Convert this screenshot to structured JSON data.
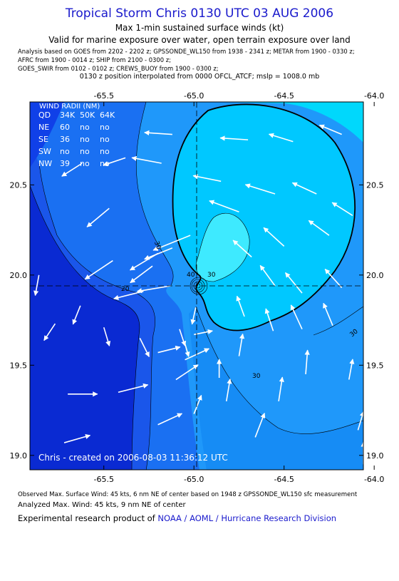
{
  "header": {
    "title": "Tropical Storm Chris 0130 UTC 03 AUG 2006",
    "subtitle": "Max 1-min sustained surface winds (kt)",
    "valid_note": "Valid for marine exposure over water, open terrain exposure over land",
    "analysis_line1": "Analysis based on  GOES from 2202 - 2202 z;  GPSSONDE_WL150 from 1938 - 2341 z;  METAR from 1900 - 0330 z;",
    "analysis_line2": "AFRC from 1900 - 0014 z;  SHIP from 2100 - 0300 z;",
    "analysis_line3": "GOES_SWIR from 0102 - 0102 z;  CREWS_BUOY from 1900 - 0300 z;",
    "interpolation_note": "0130 z position interpolated from 0000 OFCL_ATCF; mslp = 1008.0 mb"
  },
  "footer": {
    "observed_max": "Observed Max. Surface Wind: 45 kts, 6 nm NE of center based on 1948 z GPSSONDE_WL150 sfc measurement",
    "analyzed_max": "Analyzed Max. Wind: 45 kts, 9 nm NE of center",
    "product_prefix": "Experimental research product of ",
    "product_org": "NOAA / AOML / Hurricane Research Division"
  },
  "chart_data": {
    "type": "contour",
    "x_ticks": [
      "-65.5",
      "-65.0",
      "-64.5",
      "-64.0"
    ],
    "y_ticks": [
      "19.0",
      "19.5",
      "20.0",
      "20.5"
    ],
    "xlim": [
      -65.91,
      -64.06
    ],
    "ylim": [
      18.92,
      20.96
    ],
    "center": {
      "lon": -64.92,
      "lat": 19.91
    },
    "contour_labels": [
      "20",
      "30",
      "30",
      "30",
      "40",
      "30"
    ],
    "contour_levels_kt": [
      10,
      15,
      20,
      25,
      30,
      35,
      40,
      45
    ],
    "fill_colors": [
      "#0a2ad2",
      "#1040e8",
      "#1a70f2",
      "#1f98fa",
      "#00bbff",
      "#00dcfa",
      "#3af4ff",
      "#70fcff"
    ],
    "wind_radii": {
      "heading": "WIND RADII (NM)",
      "columns": [
        "QD",
        "34K",
        "50K",
        "64K"
      ],
      "rows": [
        [
          "NE",
          "60",
          "no",
          "no"
        ],
        [
          "SE",
          "36",
          "no",
          "no"
        ],
        [
          "SW",
          "no",
          "no",
          "no"
        ],
        [
          "NW",
          "39",
          "no",
          "no"
        ]
      ]
    },
    "credit": "Chris - created on 2006-08-03 11:36:12 UTC",
    "wind_vectors": [
      {
        "lon": -65.47,
        "lat": 20.37,
        "u": -1.2,
        "v": -1.0
      },
      {
        "lon": -65.02,
        "lat": 20.22,
        "u": -2.0,
        "v": -0.8
      },
      {
        "lon": -65.12,
        "lat": 20.15,
        "u": -1.5,
        "v": -0.6
      },
      {
        "lon": -65.2,
        "lat": 20.12,
        "u": -1.5,
        "v": -0.9
      },
      {
        "lon": -65.45,
        "lat": 20.08,
        "u": -1.5,
        "v": -1.0
      },
      {
        "lon": -65.23,
        "lat": 20.05,
        "u": -1.2,
        "v": -0.9
      },
      {
        "lon": -65.13,
        "lat": 19.94,
        "u": -1.8,
        "v": -0.3
      },
      {
        "lon": -65.28,
        "lat": 19.91,
        "u": -1.6,
        "v": -0.4
      },
      {
        "lon": -65.77,
        "lat": 19.73,
        "u": -0.6,
        "v": -0.9
      },
      {
        "lon": -65.63,
        "lat": 19.83,
        "u": -0.4,
        "v": -1.0
      },
      {
        "lon": -65.86,
        "lat": 20.0,
        "u": -0.2,
        "v": -1.1
      },
      {
        "lon": -65.5,
        "lat": 19.71,
        "u": 0.3,
        "v": -1.0
      },
      {
        "lon": -65.3,
        "lat": 19.65,
        "u": 0.5,
        "v": -1.0
      },
      {
        "lon": -65.08,
        "lat": 19.7,
        "u": 0.3,
        "v": -0.9
      },
      {
        "lon": -65.05,
        "lat": 19.62,
        "u": 0.2,
        "v": -0.7
      },
      {
        "lon": -64.99,
        "lat": 19.82,
        "u": -0.2,
        "v": -0.9
      },
      {
        "lon": -65.0,
        "lat": 19.67,
        "u": 1.0,
        "v": 0.2
      },
      {
        "lon": -65.2,
        "lat": 19.57,
        "u": 1.2,
        "v": 0.3
      },
      {
        "lon": -65.05,
        "lat": 19.53,
        "u": 1.3,
        "v": 0.6
      },
      {
        "lon": -65.1,
        "lat": 19.42,
        "u": 1.2,
        "v": 0.8
      },
      {
        "lon": -65.7,
        "lat": 19.34,
        "u": 1.6,
        "v": 0.0
      },
      {
        "lon": -65.42,
        "lat": 19.35,
        "u": 1.6,
        "v": 0.4
      },
      {
        "lon": -65.2,
        "lat": 19.17,
        "u": 1.3,
        "v": 0.6
      },
      {
        "lon": -65.0,
        "lat": 19.23,
        "u": 0.4,
        "v": 1.0
      },
      {
        "lon": -65.72,
        "lat": 19.07,
        "u": 1.4,
        "v": 0.4
      },
      {
        "lon": -64.86,
        "lat": 19.43,
        "u": 0.0,
        "v": 1.0
      },
      {
        "lon": -64.75,
        "lat": 19.55,
        "u": 0.2,
        "v": 1.2
      },
      {
        "lon": -64.82,
        "lat": 19.3,
        "u": 0.2,
        "v": 1.2
      },
      {
        "lon": -64.53,
        "lat": 19.3,
        "u": 0.2,
        "v": 1.3
      },
      {
        "lon": -64.66,
        "lat": 19.1,
        "u": 0.5,
        "v": 1.3
      },
      {
        "lon": -64.38,
        "lat": 19.45,
        "u": 0.1,
        "v": 1.3
      },
      {
        "lon": -64.14,
        "lat": 19.42,
        "u": 0.2,
        "v": 1.1
      },
      {
        "lon": -64.09,
        "lat": 19.14,
        "u": 0.3,
        "v": 1.0
      },
      {
        "lon": -64.06,
        "lat": 18.95,
        "u": 0.0,
        "v": 1.2
      },
      {
        "lon": -64.72,
        "lat": 19.77,
        "u": -0.4,
        "v": 1.1
      },
      {
        "lon": -64.56,
        "lat": 19.69,
        "u": -0.4,
        "v": 1.2
      },
      {
        "lon": -64.4,
        "lat": 19.7,
        "u": -0.6,
        "v": 1.3
      },
      {
        "lon": -64.23,
        "lat": 19.72,
        "u": -0.5,
        "v": 1.2
      },
      {
        "lon": -64.55,
        "lat": 19.94,
        "u": -0.8,
        "v": 1.1
      },
      {
        "lon": -64.4,
        "lat": 19.9,
        "u": -0.9,
        "v": 1.1
      },
      {
        "lon": -64.18,
        "lat": 19.93,
        "u": -0.9,
        "v": 1.0
      },
      {
        "lon": -64.68,
        "lat": 20.1,
        "u": -1.0,
        "v": 0.9
      },
      {
        "lon": -64.5,
        "lat": 20.16,
        "u": -1.1,
        "v": 1.0
      },
      {
        "lon": -64.25,
        "lat": 20.22,
        "u": -1.1,
        "v": 0.8
      },
      {
        "lon": -64.75,
        "lat": 20.35,
        "u": -1.6,
        "v": 0.6
      },
      {
        "lon": -64.55,
        "lat": 20.45,
        "u": -1.6,
        "v": 0.5
      },
      {
        "lon": -64.32,
        "lat": 20.45,
        "u": -1.3,
        "v": 0.6
      },
      {
        "lon": -64.12,
        "lat": 20.33,
        "u": -1.1,
        "v": 0.7
      },
      {
        "lon": -64.85,
        "lat": 20.52,
        "u": -1.5,
        "v": 0.3
      },
      {
        "lon": -64.7,
        "lat": 20.75,
        "u": -1.5,
        "v": 0.1
      },
      {
        "lon": -64.45,
        "lat": 20.74,
        "u": -1.3,
        "v": 0.4
      },
      {
        "lon": -64.18,
        "lat": 20.78,
        "u": -1.2,
        "v": 0.5
      },
      {
        "lon": -65.18,
        "lat": 20.62,
        "u": -1.6,
        "v": 0.3
      },
      {
        "lon": -65.12,
        "lat": 20.78,
        "u": -1.5,
        "v": 0.1
      },
      {
        "lon": -65.38,
        "lat": 20.65,
        "u": -1.2,
        "v": -0.4
      },
      {
        "lon": -65.62,
        "lat": 20.62,
        "u": -1.1,
        "v": -0.7
      }
    ]
  }
}
